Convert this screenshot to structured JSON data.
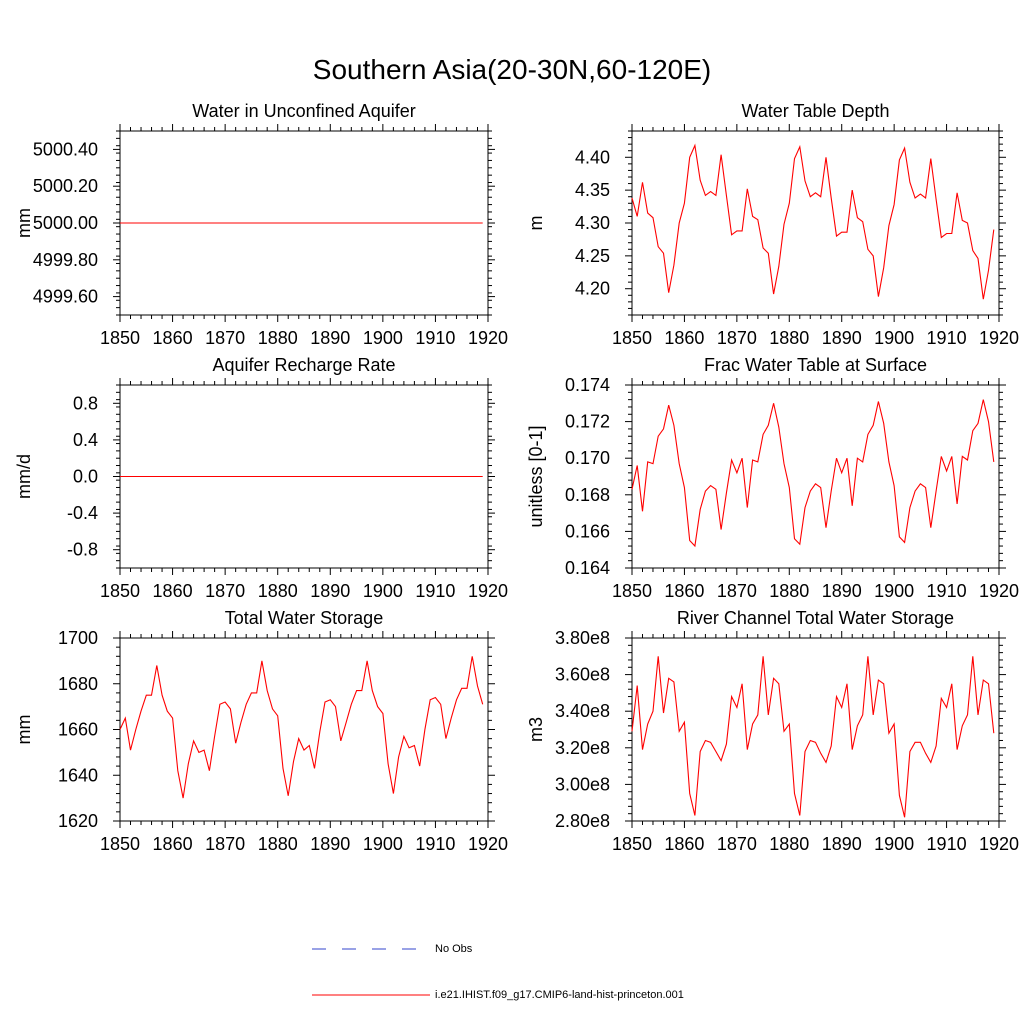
{
  "title": "Southern Asia(20-30N,60-120E)",
  "colors": {
    "model": "#ff0000",
    "obs": "#3344cc",
    "axis": "#000000"
  },
  "legend": {
    "obs_label": "No Obs",
    "model_label": "i.e21.IHIST.f09_g17.CMIP6-land-hist-princeton.001"
  },
  "chart_data": [
    {
      "type": "line",
      "title": "Water in Unconfined Aquifer",
      "ylabel": "mm",
      "xlim": [
        1850,
        1920
      ],
      "ylim": [
        4999.5,
        5000.5
      ],
      "xticks": [
        1850,
        1860,
        1870,
        1880,
        1890,
        1900,
        1910,
        1920
      ],
      "yticks": [
        4999.6,
        4999.8,
        5000.0,
        5000.2,
        5000.4
      ],
      "ytick_labels": [
        "4999.60",
        "4999.80",
        "5000.00",
        "5000.20",
        "5000.40"
      ],
      "series": [
        {
          "x": [
            1850,
            1919
          ],
          "values": [
            5000.0,
            5000.0
          ]
        }
      ]
    },
    {
      "type": "line",
      "title": "Water Table Depth",
      "ylabel": "m",
      "xlim": [
        1850,
        1920
      ],
      "ylim": [
        4.16,
        4.44
      ],
      "xticks": [
        1850,
        1860,
        1870,
        1880,
        1890,
        1900,
        1910,
        1920
      ],
      "yticks": [
        4.2,
        4.25,
        4.3,
        4.35,
        4.4
      ],
      "ytick_labels": [
        "4.20",
        "4.25",
        "4.30",
        "4.35",
        "4.40"
      ],
      "series": [
        {
          "x0": 1850,
          "values": [
            4.338,
            4.31,
            4.362,
            4.315,
            4.308,
            4.264,
            4.254,
            4.194,
            4.236,
            4.3,
            4.33,
            4.4,
            4.418,
            4.365,
            4.342,
            4.348,
            4.342,
            4.404,
            4.342,
            4.282,
            4.288,
            4.288,
            4.352,
            4.31,
            4.305,
            4.262,
            4.254,
            4.192,
            4.234,
            4.298,
            4.33,
            4.398,
            4.416,
            4.364,
            4.34,
            4.346,
            4.34,
            4.4,
            4.338,
            4.28,
            4.286,
            4.286,
            4.35,
            4.308,
            4.302,
            4.26,
            4.25,
            4.188,
            4.232,
            4.296,
            4.328,
            4.396,
            4.414,
            4.362,
            4.338,
            4.344,
            4.338,
            4.398,
            4.336,
            4.278,
            4.284,
            4.284,
            4.346,
            4.304,
            4.3,
            4.258,
            4.246,
            4.184,
            4.228,
            4.29
          ]
        }
      ]
    },
    {
      "type": "line",
      "title": "Aquifer Recharge Rate",
      "ylabel": "mm/d",
      "xlim": [
        1850,
        1920
      ],
      "ylim": [
        -1.0,
        1.0
      ],
      "xticks": [
        1850,
        1860,
        1870,
        1880,
        1890,
        1900,
        1910,
        1920
      ],
      "yticks": [
        -0.8,
        -0.4,
        0.0,
        0.4,
        0.8
      ],
      "ytick_labels": [
        "-0.8",
        "-0.4",
        "0.0",
        "0.4",
        "0.8"
      ],
      "series": [
        {
          "x": [
            1850,
            1919
          ],
          "values": [
            0.0,
            0.0
          ]
        }
      ]
    },
    {
      "type": "line",
      "title": "Frac Water Table at Surface",
      "ylabel": "unitless [0-1]",
      "xlim": [
        1850,
        1920
      ],
      "ylim": [
        0.164,
        0.174
      ],
      "xticks": [
        1850,
        1860,
        1870,
        1880,
        1890,
        1900,
        1910,
        1920
      ],
      "yticks": [
        0.164,
        0.166,
        0.168,
        0.17,
        0.172,
        0.174
      ],
      "ytick_labels": [
        "0.164",
        "0.166",
        "0.168",
        "0.170",
        "0.172",
        "0.174"
      ],
      "series": [
        {
          "x0": 1850,
          "values": [
            0.1683,
            0.1696,
            0.1671,
            0.1698,
            0.1697,
            0.1712,
            0.1716,
            0.1729,
            0.1718,
            0.1697,
            0.1684,
            0.1655,
            0.1652,
            0.1672,
            0.1682,
            0.1685,
            0.1683,
            0.1661,
            0.1681,
            0.1699,
            0.1692,
            0.17,
            0.1673,
            0.1699,
            0.1698,
            0.1713,
            0.1718,
            0.173,
            0.1717,
            0.1697,
            0.1684,
            0.1656,
            0.1653,
            0.1673,
            0.1682,
            0.1686,
            0.1684,
            0.1662,
            0.1682,
            0.17,
            0.1692,
            0.17,
            0.1674,
            0.17,
            0.1698,
            0.1713,
            0.1718,
            0.1731,
            0.1719,
            0.1698,
            0.1685,
            0.1657,
            0.1654,
            0.1673,
            0.1682,
            0.1686,
            0.1684,
            0.1662,
            0.1682,
            0.1701,
            0.1693,
            0.1701,
            0.1675,
            0.1701,
            0.1699,
            0.1715,
            0.1719,
            0.1732,
            0.172,
            0.1698
          ]
        }
      ]
    },
    {
      "type": "line",
      "title": "Total Water Storage",
      "ylabel": "mm",
      "xlim": [
        1850,
        1920
      ],
      "ylim": [
        1620,
        1700
      ],
      "xticks": [
        1850,
        1860,
        1870,
        1880,
        1890,
        1900,
        1910,
        1920
      ],
      "yticks": [
        1620,
        1640,
        1660,
        1680,
        1700
      ],
      "ytick_labels": [
        "1620",
        "1640",
        "1660",
        "1680",
        "1700"
      ],
      "series": [
        {
          "x0": 1850,
          "values": [
            1660,
            1665,
            1651,
            1660,
            1668,
            1675,
            1675,
            1688,
            1675,
            1668,
            1665,
            1642,
            1630,
            1645,
            1655,
            1650,
            1651,
            1642,
            1657,
            1671,
            1672,
            1669,
            1654,
            1663,
            1671,
            1676,
            1676,
            1690,
            1677,
            1669,
            1666,
            1643,
            1631,
            1646,
            1656,
            1651,
            1653,
            1643,
            1659,
            1672,
            1673,
            1670,
            1655,
            1663,
            1671,
            1677,
            1677,
            1690,
            1677,
            1670,
            1667,
            1645,
            1632,
            1648,
            1657,
            1652,
            1653,
            1644,
            1660,
            1673,
            1674,
            1671,
            1656,
            1665,
            1673,
            1678,
            1678,
            1692,
            1679,
            1671
          ]
        }
      ]
    },
    {
      "type": "line",
      "title": "River Channel Total Water Storage",
      "ylabel": "m3",
      "xlim": [
        1850,
        1920
      ],
      "ylim": [
        280000000.0,
        380000000.0
      ],
      "xticks": [
        1850,
        1860,
        1870,
        1880,
        1890,
        1900,
        1910,
        1920
      ],
      "yticks": [
        280000000.0,
        300000000.0,
        320000000.0,
        340000000.0,
        360000000.0,
        380000000.0
      ],
      "ytick_labels": [
        "2.80e8",
        "3.00e8",
        "3.20e8",
        "3.40e8",
        "3.60e8",
        "3.80e8"
      ],
      "series": [
        {
          "x0": 1850,
          "values": [
            329000000.0,
            354000000.0,
            319000000.0,
            333000000.0,
            340000000.0,
            370000000.0,
            339000000.0,
            358000000.0,
            356000000.0,
            329000000.0,
            334000000.0,
            295000000.0,
            283000000.0,
            318000000.0,
            324000000.0,
            323000000.0,
            318000000.0,
            313000000.0,
            322000000.0,
            348000000.0,
            342000000.0,
            355000000.0,
            319000000.0,
            333000000.0,
            338000000.0,
            370000000.0,
            338000000.0,
            358000000.0,
            355000000.0,
            329000000.0,
            333000000.0,
            295000000.0,
            283000000.0,
            318000000.0,
            324000000.0,
            323000000.0,
            317000000.0,
            312000000.0,
            321000000.0,
            348000000.0,
            342000000.0,
            355000000.0,
            319000000.0,
            332000000.0,
            338000000.0,
            370000000.0,
            338000000.0,
            357000000.0,
            355000000.0,
            328000000.0,
            333000000.0,
            294000000.0,
            282000000.0,
            318000000.0,
            323000000.0,
            323000000.0,
            317000000.0,
            312000000.0,
            321000000.0,
            347000000.0,
            342000000.0,
            355000000.0,
            319000000.0,
            332000000.0,
            338000000.0,
            370000000.0,
            338000000.0,
            357000000.0,
            355000000.0,
            328000000.0
          ]
        }
      ]
    }
  ]
}
